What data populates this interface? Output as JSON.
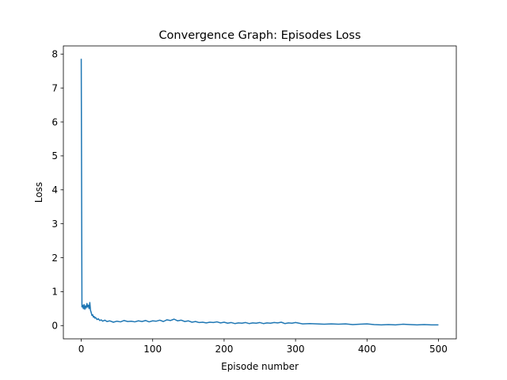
{
  "chart_data": {
    "type": "line",
    "title": "Convergence Graph: Episodes Loss",
    "xlabel": "Episode number",
    "ylabel": "Loss",
    "xlim": [
      -25,
      525
    ],
    "ylim": [
      -0.39,
      8.24
    ],
    "xticks": [
      0,
      100,
      200,
      300,
      400,
      500
    ],
    "yticks": [
      0,
      1,
      2,
      3,
      4,
      5,
      6,
      7,
      8
    ],
    "grid": false,
    "series": [
      {
        "color": "#1f77b4",
        "x": [
          0,
          1,
          2,
          3,
          4,
          5,
          6,
          7,
          8,
          9,
          10,
          11,
          12,
          13,
          14,
          15,
          16,
          17,
          18,
          19,
          20,
          22,
          24,
          26,
          28,
          30,
          33,
          36,
          40,
          45,
          50,
          55,
          60,
          65,
          70,
          75,
          80,
          85,
          90,
          95,
          100,
          105,
          110,
          115,
          120,
          125,
          130,
          135,
          140,
          145,
          150,
          155,
          160,
          165,
          170,
          175,
          180,
          185,
          190,
          195,
          200,
          205,
          210,
          215,
          220,
          225,
          230,
          235,
          240,
          245,
          250,
          255,
          260,
          265,
          270,
          275,
          280,
          285,
          290,
          295,
          300,
          310,
          320,
          330,
          340,
          350,
          360,
          370,
          380,
          390,
          400,
          410,
          420,
          430,
          440,
          450,
          460,
          470,
          480,
          490,
          500
        ],
        "values": [
          7.86,
          0.55,
          0.6,
          0.5,
          0.62,
          0.48,
          0.58,
          0.52,
          0.65,
          0.55,
          0.6,
          0.5,
          0.68,
          0.45,
          0.38,
          0.3,
          0.32,
          0.25,
          0.27,
          0.22,
          0.24,
          0.18,
          0.2,
          0.15,
          0.17,
          0.13,
          0.16,
          0.12,
          0.14,
          0.1,
          0.13,
          0.11,
          0.15,
          0.12,
          0.13,
          0.11,
          0.14,
          0.12,
          0.15,
          0.11,
          0.14,
          0.13,
          0.16,
          0.12,
          0.17,
          0.15,
          0.19,
          0.14,
          0.16,
          0.12,
          0.14,
          0.1,
          0.12,
          0.09,
          0.1,
          0.08,
          0.1,
          0.09,
          0.11,
          0.08,
          0.1,
          0.07,
          0.09,
          0.06,
          0.08,
          0.07,
          0.09,
          0.06,
          0.08,
          0.07,
          0.09,
          0.06,
          0.08,
          0.07,
          0.09,
          0.08,
          0.1,
          0.06,
          0.08,
          0.07,
          0.09,
          0.05,
          0.06,
          0.05,
          0.04,
          0.05,
          0.04,
          0.05,
          0.03,
          0.04,
          0.05,
          0.03,
          0.02,
          0.03,
          0.02,
          0.04,
          0.03,
          0.02,
          0.03,
          0.02,
          0.02
        ]
      }
    ]
  }
}
